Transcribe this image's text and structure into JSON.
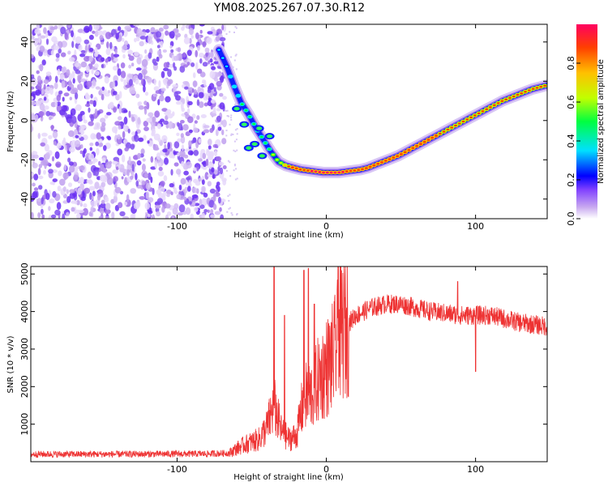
{
  "title": "YM08.2025.267.07.30.R12",
  "chart_data": [
    {
      "type": "heatmap",
      "name": "spectrogram",
      "xlabel": "Height of straight line (km)",
      "ylabel": "Frequency (Hz)",
      "xlim": [
        -198,
        148
      ],
      "ylim": [
        -50,
        49
      ],
      "xticks": [
        -100,
        0,
        100
      ],
      "xtick_labels": [
        "-100",
        "0",
        "100"
      ],
      "yticks": [
        -40,
        -20,
        0,
        20,
        40
      ],
      "ytick_labels": [
        "-40",
        "-20",
        "0",
        "20",
        "40"
      ],
      "noise_region_x": [
        -198,
        -68
      ],
      "ridge": {
        "x": [
          -72,
          -67,
          -62,
          -57,
          -52,
          -47,
          -42,
          -37,
          -32,
          -27,
          -22,
          -17,
          -12,
          -7,
          -2,
          3,
          8,
          13,
          18,
          23,
          28,
          33,
          38,
          43,
          48,
          53,
          58,
          63,
          68,
          73,
          78,
          83,
          88,
          93,
          98,
          103,
          108,
          113,
          118,
          123,
          128,
          133,
          138,
          143,
          148
        ],
        "y": [
          36,
          28,
          18,
          9,
          3,
          -4,
          -10,
          -16,
          -21,
          -23,
          -24,
          -25,
          -25.5,
          -26,
          -26.5,
          -26.5,
          -26.5,
          -26,
          -25.5,
          -25,
          -24,
          -22.5,
          -21,
          -19.5,
          -18,
          -16,
          -14,
          -12,
          -10,
          -8,
          -6,
          -4,
          -2,
          0,
          2,
          4,
          6,
          8,
          10,
          11.5,
          13,
          14.5,
          16,
          17,
          18
        ],
        "amplitude": [
          0.35,
          0.4,
          0.45,
          0.5,
          0.55,
          0.55,
          0.6,
          0.6,
          0.7,
          0.85,
          0.95,
          0.98,
          1.0,
          1.0,
          1.0,
          1.0,
          1.0,
          1.0,
          0.98,
          0.97,
          0.96,
          0.95,
          0.95,
          0.94,
          0.94,
          0.93,
          0.93,
          0.92,
          0.92,
          0.92,
          0.91,
          0.91,
          0.9,
          0.9,
          0.9,
          0.9,
          0.9,
          0.9,
          0.9,
          0.9,
          0.9,
          0.9,
          0.9,
          0.9,
          0.9
        ]
      },
      "colorbar": {
        "label": "Normalized spectral amplitude",
        "range": [
          0,
          1
        ],
        "ticks": [
          0.0,
          0.2,
          0.4,
          0.6,
          0.8
        ],
        "tick_labels": [
          "0.0",
          "0.2",
          "0.4",
          "0.6",
          "0.8"
        ],
        "colors": [
          "#ffffff",
          "#c8a8f0",
          "#8040ff",
          "#0000ff",
          "#00e0ff",
          "#00ff40",
          "#c0ff00",
          "#ffc000",
          "#ff4000",
          "#ff0060"
        ]
      }
    },
    {
      "type": "line",
      "name": "snr",
      "xlabel": "Height of straight line (km)",
      "ylabel": "SNR (10 * v/v)",
      "xlim": [
        -198,
        148
      ],
      "ylim": [
        0,
        5200
      ],
      "xticks": [
        -100,
        0,
        100
      ],
      "xtick_labels": [
        "-100",
        "0",
        "100"
      ],
      "yticks": [
        1000,
        2000,
        3000,
        4000,
        5000
      ],
      "ytick_labels": [
        "1000",
        "2000",
        "3000",
        "4000",
        "5000"
      ],
      "color": "#ee3333",
      "series": [
        {
          "name": "SNR envelope",
          "x": [
            -198,
            -140,
            -80,
            -65,
            -60,
            -55,
            -45,
            -40,
            -35,
            -30,
            -25,
            -20,
            -15,
            -10,
            -5,
            0,
            5,
            10,
            15,
            20,
            30,
            40,
            50,
            60,
            70,
            80,
            90,
            100,
            110,
            120,
            130,
            140,
            148
          ],
          "y": [
            200,
            200,
            210,
            230,
            350,
            450,
            600,
            900,
            1500,
            800,
            600,
            700,
            1700,
            1800,
            2200,
            2500,
            2800,
            3500,
            3700,
            3900,
            4100,
            4200,
            4200,
            4100,
            4000,
            3950,
            3900,
            3900,
            3900,
            3800,
            3700,
            3650,
            3600
          ]
        }
      ],
      "spikes": [
        {
          "x": -35,
          "y": 5200
        },
        {
          "x": -28,
          "y": 3900
        },
        {
          "x": -15,
          "y": 5100
        },
        {
          "x": -12,
          "y": 5150
        },
        {
          "x": -8,
          "y": 4200
        },
        {
          "x": 8,
          "y": 5200
        },
        {
          "x": 88,
          "y": 4800
        },
        {
          "x": 100,
          "y": 2400
        }
      ]
    }
  ]
}
